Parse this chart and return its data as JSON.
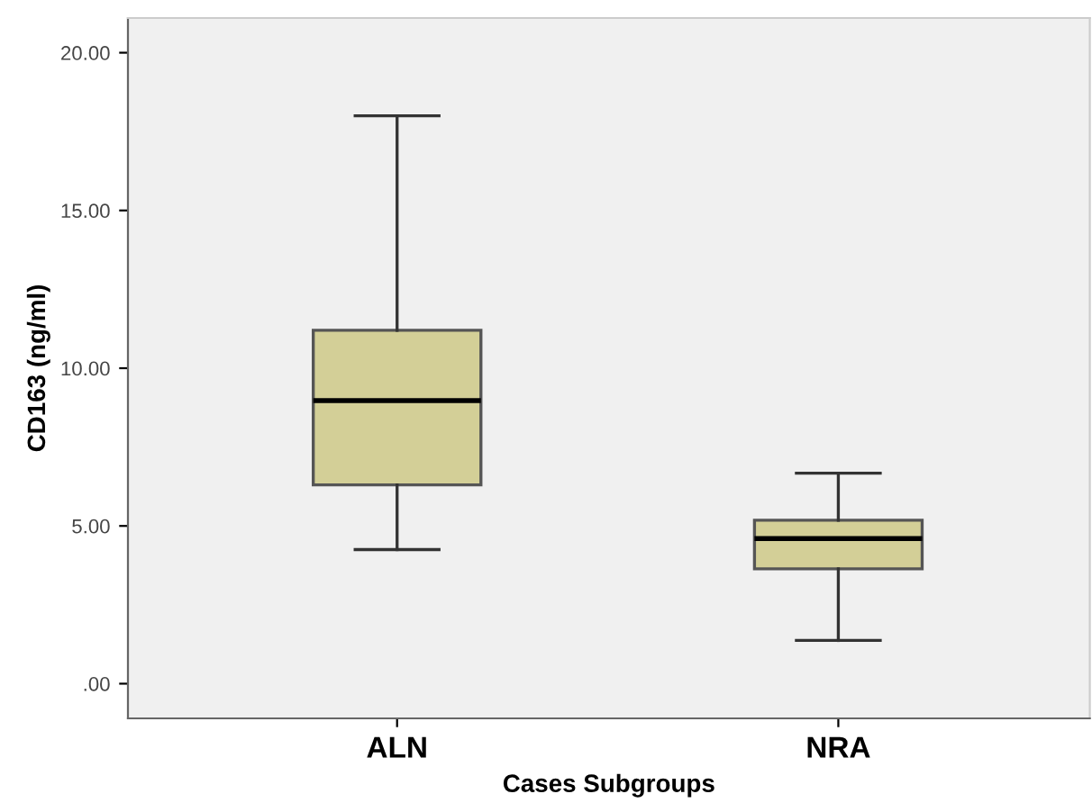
{
  "chart_data": {
    "type": "box",
    "xlabel": "Cases Subgroups",
    "ylabel": "CD163 (ng/ml)",
    "categories": [
      "ALN",
      "NRA"
    ],
    "series": [
      {
        "color": "#d3cf97",
        "boxes": [
          {
            "low": 4.25,
            "q1": 6.3,
            "median": 8.97,
            "q3": 11.2,
            "high": 18.0
          },
          {
            "low": 1.37,
            "q1": 3.64,
            "median": 4.6,
            "q3": 5.18,
            "high": 6.67
          }
        ]
      }
    ],
    "ylim": [
      -1.1,
      21.1
    ],
    "yticks": [
      {
        "value": 0,
        "label": ".00"
      },
      {
        "value": 5,
        "label": "5.00"
      },
      {
        "value": 10,
        "label": "10.00"
      },
      {
        "value": 15,
        "label": "15.00"
      },
      {
        "value": 20,
        "label": "20.00"
      }
    ],
    "grid": false,
    "legend": false
  }
}
